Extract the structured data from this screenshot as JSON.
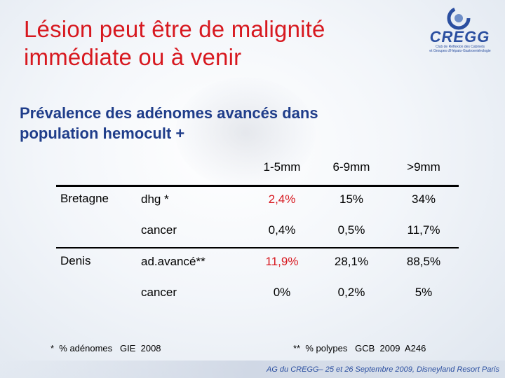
{
  "title": {
    "line1": "Lésion peut être de malignité",
    "line2": "immédiate ou à venir"
  },
  "logo": {
    "name": "CREGG",
    "sub1": "Club de Réflexion des Cabinets",
    "sub2": "et Groupes d'Hépato-Gastroentérologie",
    "icon": "cregg-logo-swirl"
  },
  "subtitle": {
    "line1": "Prévalence des adénomes avancés dans",
    "line2": "population hemocult +"
  },
  "table": {
    "headers": [
      "1-5mm",
      "6-9mm",
      ">9mm"
    ],
    "rows": [
      {
        "group": "Bretagne",
        "label": "dhg *",
        "values": [
          "2,4%",
          "15%",
          "34%"
        ]
      },
      {
        "group": "",
        "label": "cancer",
        "values": [
          "0,4%",
          "0,5%",
          "11,7%"
        ]
      },
      {
        "group": "Denis",
        "label": "ad.avancé**",
        "values": [
          "11,9%",
          "28,1%",
          "88,5%"
        ]
      },
      {
        "group": "",
        "label": "cancer",
        "values": [
          "0%",
          "0,2%",
          "5%"
        ]
      }
    ]
  },
  "footnotes": {
    "left": "*  % adénomes   GIE  2008",
    "right": "**  % polypes   GCB  2009  A246"
  },
  "footer": "AG du CREGG– 25 et 26 Septembre 2009, Disneyland Resort Paris",
  "colors": {
    "title": "#d7181f",
    "subtitle": "#1f3d8a",
    "highlight": "#d7181f",
    "logo": "#2b4fa0"
  }
}
